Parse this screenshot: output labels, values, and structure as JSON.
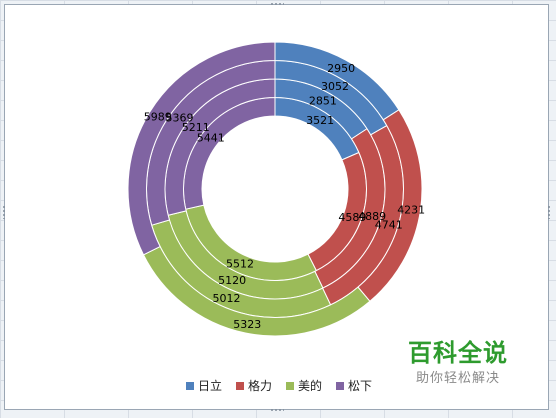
{
  "chart_data": {
    "type": "doughnut",
    "categories": [
      "日立",
      "格力",
      "美的",
      "松下"
    ],
    "colors": [
      "#4f81bd",
      "#c0504d",
      "#9bbb59",
      "#8064a2"
    ],
    "series": [
      {
        "values": [
          3521,
          4589,
          5512,
          5441
        ]
      },
      {
        "values": [
          2851,
          4889,
          5120,
          5211
        ]
      },
      {
        "values": [
          3052,
          4741,
          5012,
          5369
        ]
      },
      {
        "values": [
          2950,
          4231,
          5323,
          5989
        ]
      }
    ],
    "legend_position": "bottom"
  },
  "legend": [
    {
      "label": "日立",
      "color": "#4f81bd"
    },
    {
      "label": "格力",
      "color": "#c0504d"
    },
    {
      "label": "美的",
      "color": "#9bbb59"
    },
    {
      "label": "松下",
      "color": "#8064a2"
    }
  ],
  "watermark": {
    "title": "百科全说",
    "subtitle": "助你轻松解决"
  }
}
